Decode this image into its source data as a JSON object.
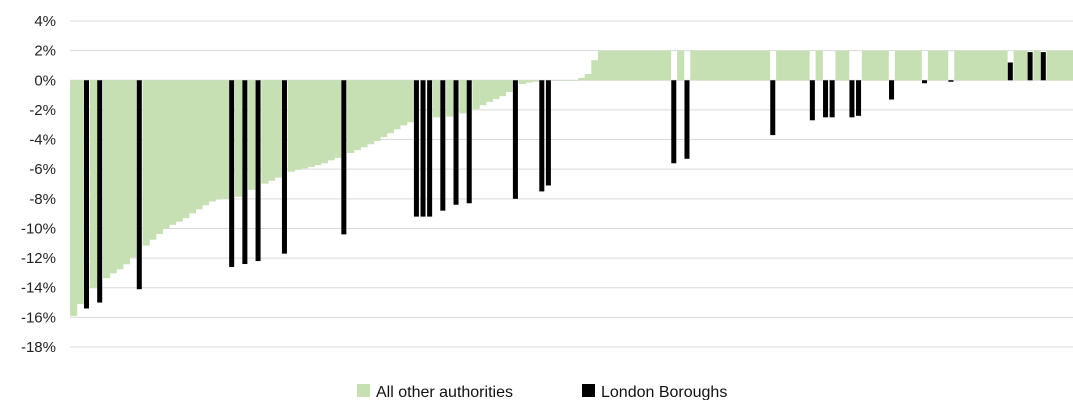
{
  "chart_data": {
    "type": "bar",
    "title": "",
    "xlabel": "",
    "ylabel": "",
    "ylim": [
      -0.18,
      0.04
    ],
    "y_ticks": [
      {
        "value": 0.04,
        "label": "4%"
      },
      {
        "value": 0.02,
        "label": "2%"
      },
      {
        "value": 0.0,
        "label": "0%"
      },
      {
        "value": -0.02,
        "label": "-2%"
      },
      {
        "value": -0.04,
        "label": "-4%"
      },
      {
        "value": -0.06,
        "label": "-6%"
      },
      {
        "value": -0.08,
        "label": "-8%"
      },
      {
        "value": -0.1,
        "label": "-10%"
      },
      {
        "value": -0.12,
        "label": "-12%"
      },
      {
        "value": -0.14,
        "label": "-14%"
      },
      {
        "value": -0.16,
        "label": "-16%"
      },
      {
        "value": -0.18,
        "label": "-18%"
      }
    ],
    "grid": true,
    "legend": {
      "position": "bottom"
    },
    "series": [
      {
        "name": "All other authorities",
        "color": "#c6e0b4"
      },
      {
        "name": "London Boroughs",
        "color": "#000000"
      }
    ],
    "bar_count": 152,
    "start_value": -0.159,
    "curve_points": [
      [
        0,
        -0.159
      ],
      [
        4,
        -0.153
      ],
      [
        8,
        -0.15
      ],
      [
        12,
        -0.147
      ],
      [
        20,
        -0.14
      ],
      [
        30,
        -0.135
      ],
      [
        40,
        -0.13
      ],
      [
        50,
        -0.126
      ],
      [
        60,
        -0.119
      ],
      [
        70,
        -0.113
      ],
      [
        80,
        -0.107
      ],
      [
        90,
        -0.101
      ],
      [
        100,
        -0.097
      ],
      [
        110,
        -0.094
      ],
      [
        118,
        -0.09
      ],
      [
        130,
        -0.085
      ],
      [
        140,
        -0.081
      ],
      [
        150,
        -0.08
      ],
      [
        160,
        -0.08
      ],
      [
        170,
        -0.077
      ],
      [
        180,
        -0.073
      ],
      [
        190,
        -0.07
      ],
      [
        200,
        -0.067
      ],
      [
        212,
        -0.063
      ],
      [
        220,
        -0.061
      ],
      [
        240,
        -0.058
      ],
      [
        250,
        -0.056
      ],
      [
        260,
        -0.053
      ],
      [
        270,
        -0.051
      ],
      [
        280,
        -0.048
      ],
      [
        290,
        -0.045
      ],
      [
        300,
        -0.042
      ],
      [
        310,
        -0.038
      ],
      [
        320,
        -0.034
      ],
      [
        330,
        -0.03
      ],
      [
        340,
        -0.027
      ],
      [
        350,
        -0.026
      ],
      [
        360,
        -0.025
      ],
      [
        370,
        -0.025
      ],
      [
        380,
        -0.024
      ],
      [
        390,
        -0.022
      ],
      [
        400,
        -0.02
      ],
      [
        410,
        -0.016
      ],
      [
        420,
        -0.013
      ],
      [
        430,
        -0.01
      ],
      [
        436,
        -0.007
      ],
      [
        440,
        -0.005
      ],
      [
        445,
        -0.003
      ],
      [
        450,
        -0.002
      ],
      [
        460,
        -0.001
      ],
      [
        470,
        -0.001
      ],
      [
        480,
        0.0
      ],
      [
        490,
        0.0
      ],
      [
        500,
        0.0
      ],
      [
        505,
        0.001
      ],
      [
        510,
        0.003
      ],
      [
        515,
        0.005
      ],
      [
        520,
        0.014
      ],
      [
        525,
        0.02
      ],
      [
        1000,
        0.02
      ]
    ],
    "london_boroughs": [
      {
        "bar": 8,
        "value": -0.154
      },
      {
        "bar": 14,
        "value": -0.15
      },
      {
        "bar": 32,
        "value": -0.141
      },
      {
        "bar": 79,
        "value": -0.126
      },
      {
        "bar": 86,
        "value": -0.124
      },
      {
        "bar": 93,
        "value": -0.122
      },
      {
        "bar": 106,
        "value": -0.117
      },
      {
        "bar": 135,
        "value": -0.104
      },
      {
        "bar": 172,
        "value": -0.092
      },
      {
        "bar": 173,
        "value": -0.092
      },
      {
        "bar": 174,
        "value": -0.092
      },
      {
        "bar": 175,
        "value": -0.092
      },
      {
        "bar": 176,
        "value": -0.092
      },
      {
        "bar": 177,
        "value": -0.092
      },
      {
        "bar": 184,
        "value": -0.088
      },
      {
        "bar": 191,
        "value": -0.084
      },
      {
        "bar": 197,
        "value": -0.083
      },
      {
        "bar": 219,
        "value": -0.08
      },
      {
        "bar": 232,
        "value": -0.075
      },
      {
        "bar": 233,
        "value": -0.075
      },
      {
        "bar": 234,
        "value": -0.075
      },
      {
        "bar": 237,
        "value": -0.071
      },
      {
        "bar": 300,
        "value": -0.056
      },
      {
        "bar": 306,
        "value": -0.053
      },
      {
        "bar": 350,
        "value": -0.037
      },
      {
        "bar": 368,
        "value": -0.027
      },
      {
        "bar": 375,
        "value": -0.025
      },
      {
        "bar": 376,
        "value": -0.025
      },
      {
        "bar": 377,
        "value": -0.025
      },
      {
        "bar": 387,
        "value": -0.025
      },
      {
        "bar": 393,
        "value": -0.024
      },
      {
        "bar": 408,
        "value": -0.013
      },
      {
        "bar": 423,
        "value": -0.002
      },
      {
        "bar": 436,
        "value": -0.001
      },
      {
        "bar": 468,
        "value": 0.012
      },
      {
        "bar": 477,
        "value": 0.019
      },
      {
        "bar": 484,
        "value": 0.019
      }
    ]
  }
}
